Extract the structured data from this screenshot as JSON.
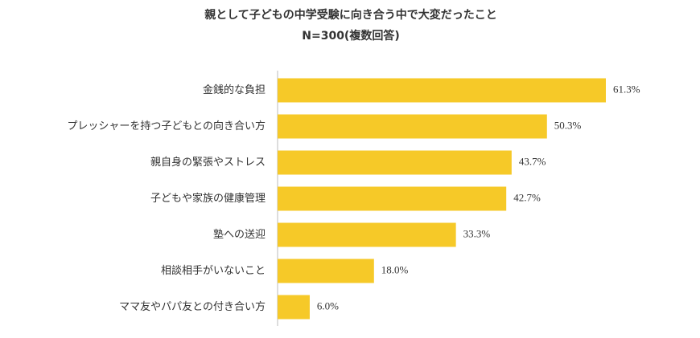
{
  "chart_data": {
    "type": "bar",
    "orientation": "horizontal",
    "title": "親として子どもの中学受験に向き合う中で大変だったこと",
    "subtitle": "N=300(複数回答)",
    "categories": [
      "金銭的な負担",
      "プレッシャーを持つ子どもとの向き合い方",
      "親自身の緊張やストレス",
      "子どもや家族の健康管理",
      "塾への送迎",
      "相談相手がいないこと",
      "ママ友やパパ友との付き合い方"
    ],
    "values": [
      61.3,
      50.3,
      43.7,
      42.7,
      33.3,
      18.0,
      6.0
    ],
    "value_labels": [
      "61.3%",
      "50.3%",
      "43.7%",
      "42.7%",
      "33.3%",
      "18.0%",
      "6.0%"
    ],
    "color": "#f6c928"
  }
}
